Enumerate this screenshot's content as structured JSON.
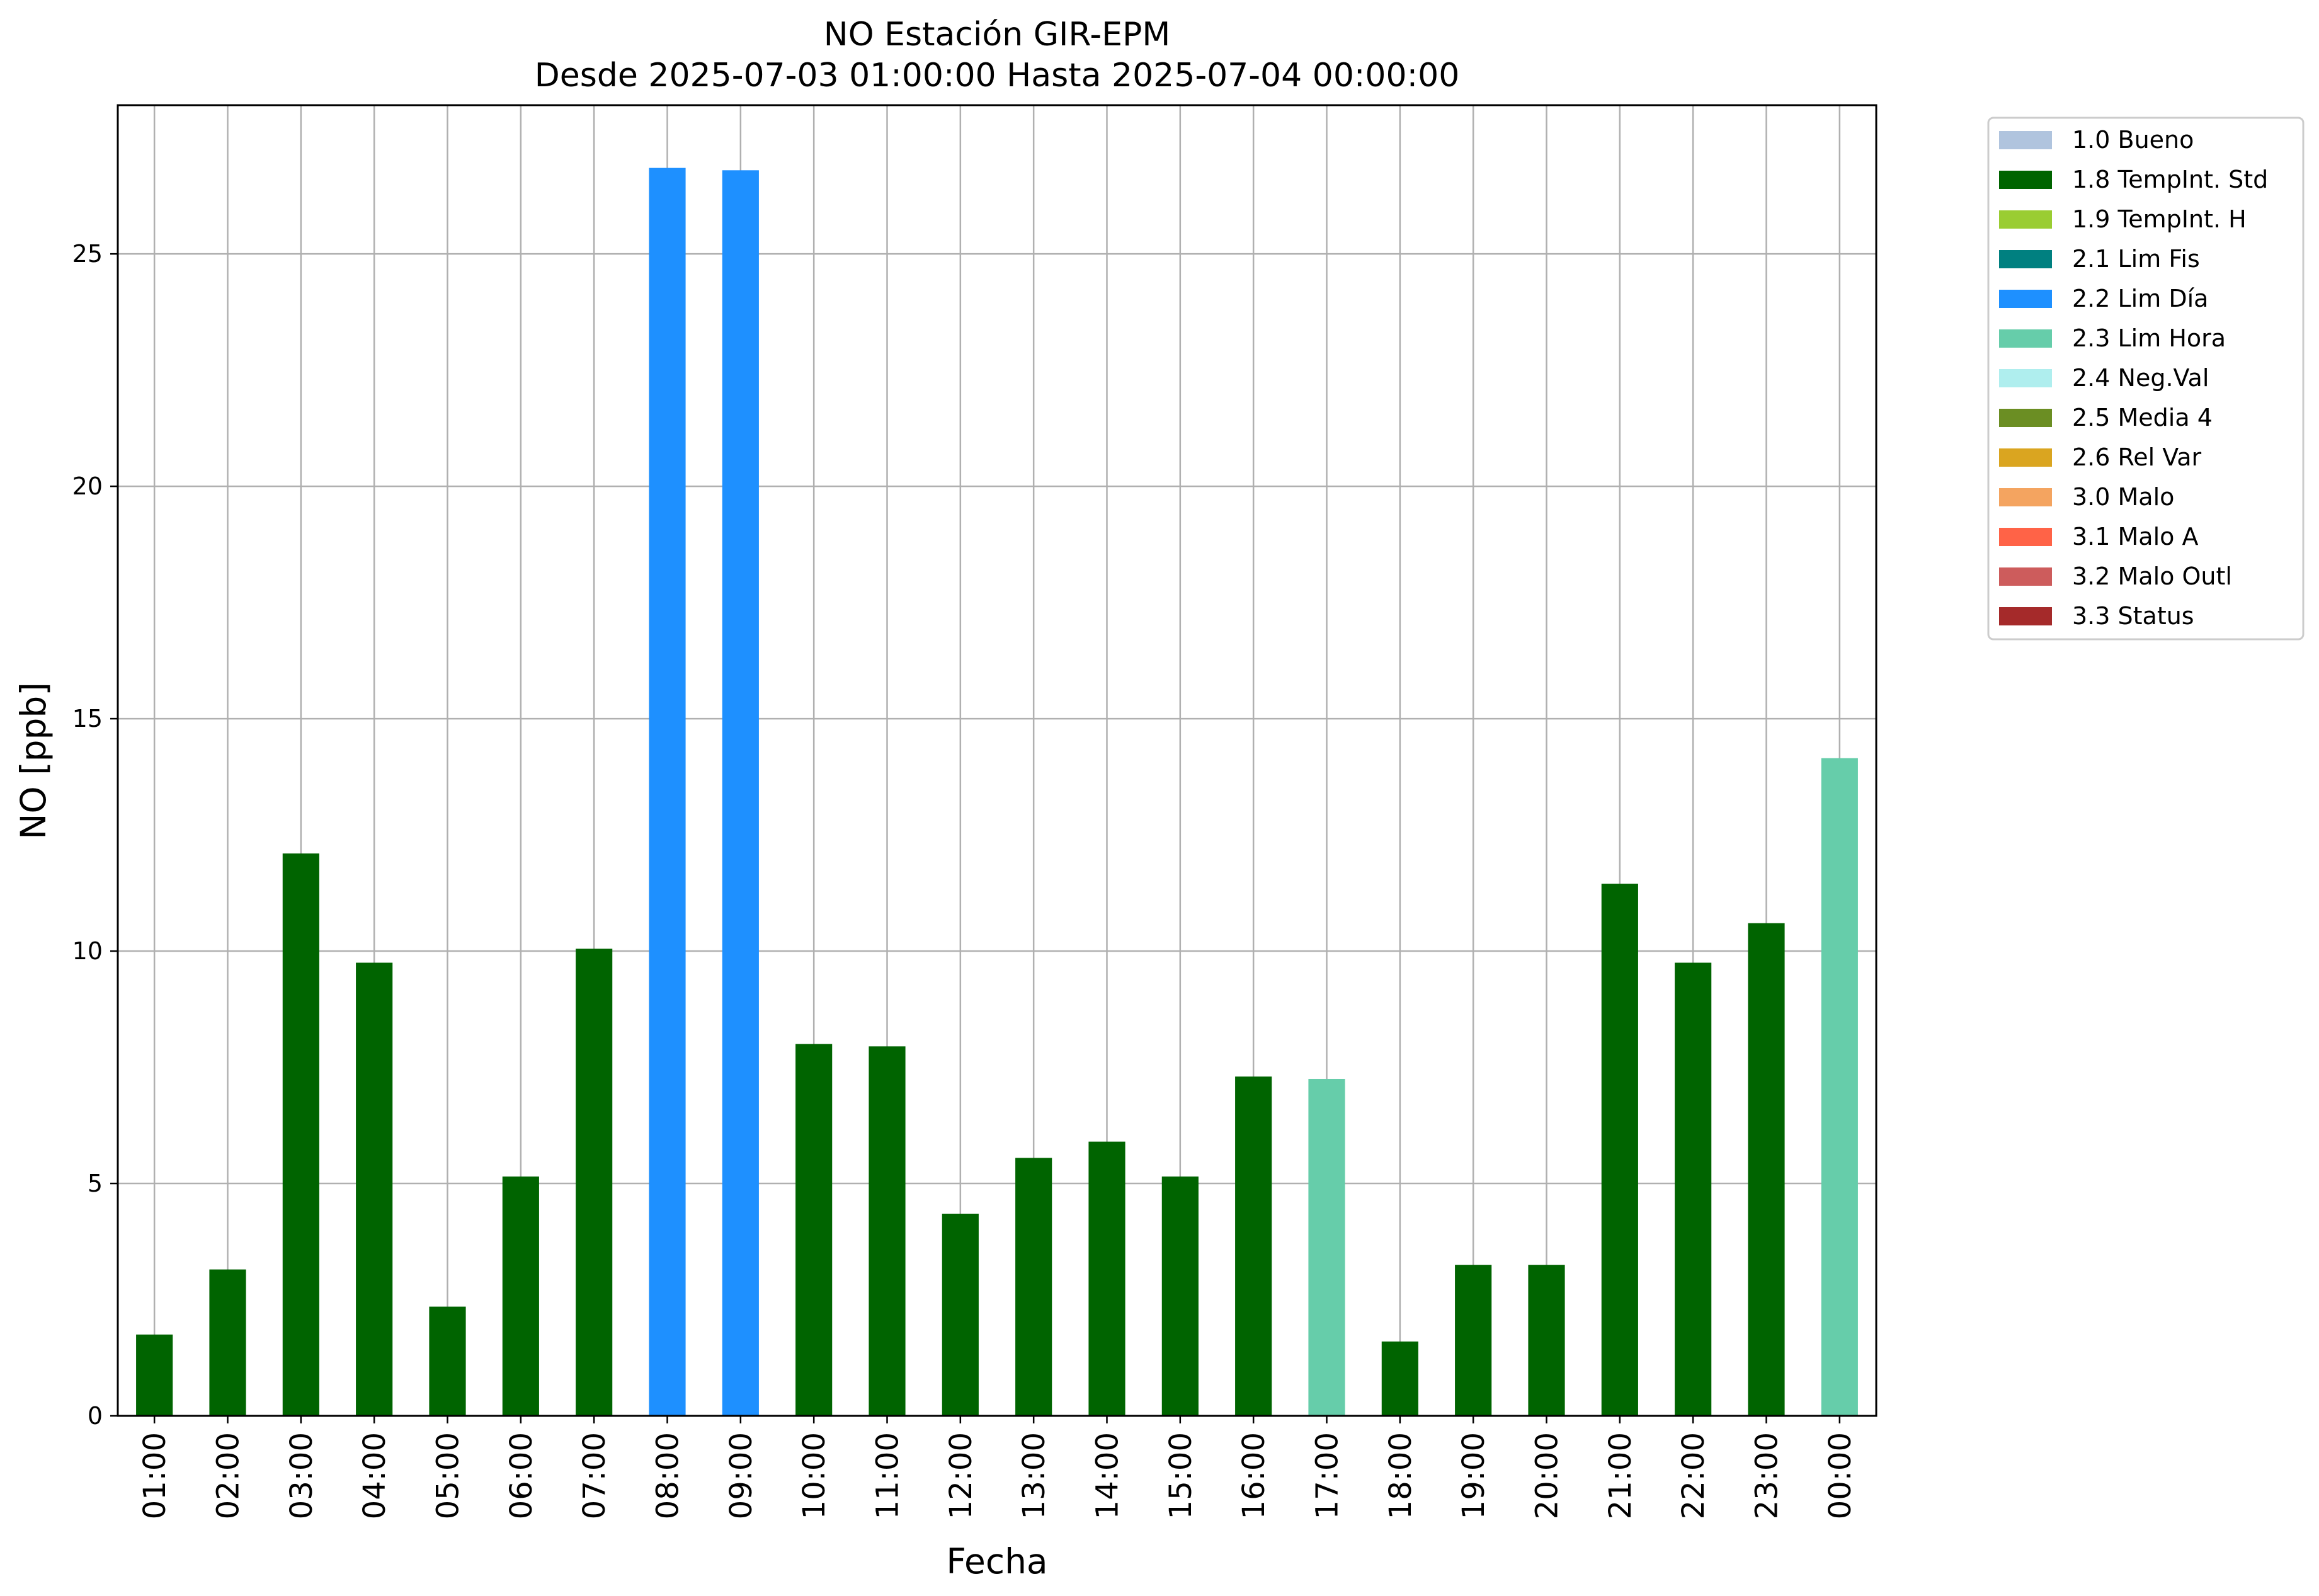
{
  "chart_data": {
    "type": "bar",
    "title": "NO Estación GIR-EPM",
    "subtitle": "Desde 2025-07-03 01:00:00 Hasta 2025-07-04 00:00:00",
    "xlabel": "Fecha",
    "ylabel": "NO [ppb]",
    "ylim": [
      0,
      28.2
    ],
    "yticks": [
      0,
      5,
      10,
      15,
      20,
      25
    ],
    "grid": true,
    "legend_position": "outside-right",
    "categories": [
      "01:00",
      "02:00",
      "03:00",
      "04:00",
      "05:00",
      "06:00",
      "07:00",
      "08:00",
      "09:00",
      "10:00",
      "11:00",
      "12:00",
      "13:00",
      "14:00",
      "15:00",
      "16:00",
      "17:00",
      "18:00",
      "19:00",
      "20:00",
      "21:00",
      "22:00",
      "23:00",
      "00:00"
    ],
    "values": [
      1.75,
      3.15,
      12.1,
      9.75,
      2.35,
      5.15,
      10.05,
      26.85,
      26.8,
      8.0,
      7.95,
      4.35,
      5.55,
      5.9,
      5.15,
      7.3,
      7.25,
      1.6,
      3.25,
      3.25,
      11.45,
      9.75,
      10.6,
      14.15
    ],
    "flags": [
      "1.8",
      "1.8",
      "1.8",
      "1.8",
      "1.8",
      "1.8",
      "1.8",
      "2.2",
      "2.2",
      "1.8",
      "1.8",
      "1.8",
      "1.8",
      "1.8",
      "1.8",
      "1.8",
      "2.3",
      "1.8",
      "1.8",
      "1.8",
      "1.8",
      "1.8",
      "1.8",
      "2.3"
    ],
    "legend": [
      {
        "code": "1.8",
        "label": "1.8 TempInt. Std",
        "color": "#006400"
      },
      {
        "code": "2.2",
        "label": "2.2 Lim Día",
        "color": "#1e90ff"
      },
      {
        "code": "1.0",
        "label": "1.0 Bueno",
        "color": "#b0c4de"
      },
      {
        "code": "1.9",
        "label": "1.9 TempInt. H",
        "color": "#9acd32"
      },
      {
        "code": "2.1",
        "label": "2.1 Lim Fis",
        "color": "#008080"
      },
      {
        "code": "2.3",
        "label": "2.3 Lim Hora",
        "color": "#66cdaa"
      },
      {
        "code": "2.4",
        "label": "2.4 Neg.Val",
        "color": "#afeeee"
      },
      {
        "code": "2.5",
        "label": "2.5 Media 4",
        "color": "#6b8e23"
      },
      {
        "code": "2.6",
        "label": "2.6 Rel Var",
        "color": "#daa520"
      },
      {
        "code": "3.0",
        "label": "3.0 Malo",
        "color": "#f4a460"
      },
      {
        "code": "3.1",
        "label": "3.1 Malo A",
        "color": "#ff6347"
      },
      {
        "code": "3.2",
        "label": "3.2 Malo Outl",
        "color": "#cd5c5c"
      },
      {
        "code": "3.3",
        "label": "3.3 Status",
        "color": "#a52a2a"
      }
    ],
    "legend_order": [
      "1.0",
      "1.8",
      "1.9",
      "2.1",
      "2.2",
      "2.3",
      "2.4",
      "2.5",
      "2.6",
      "3.0",
      "3.1",
      "3.2",
      "3.3"
    ]
  }
}
